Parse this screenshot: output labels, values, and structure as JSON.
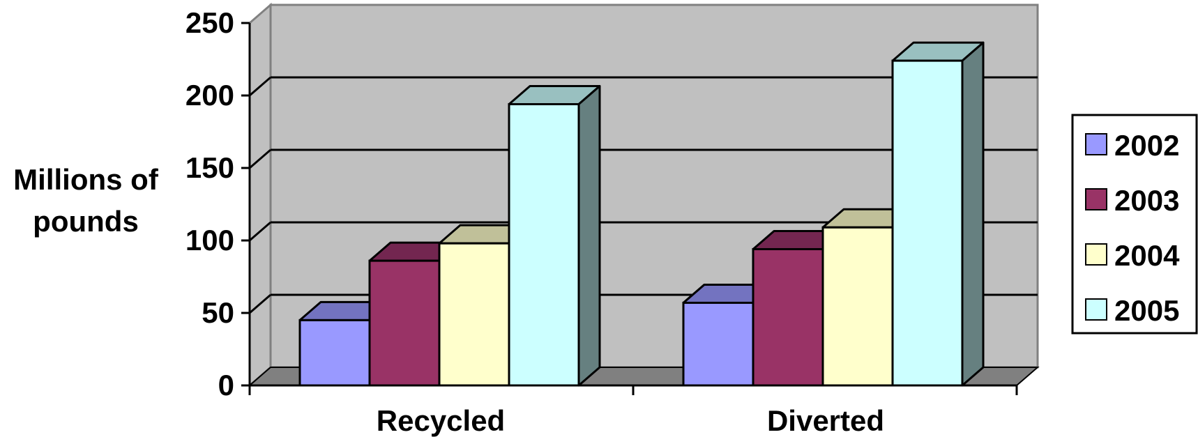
{
  "chart_data": {
    "type": "bar",
    "title": "",
    "ylabel_lines": [
      "Millions of",
      "pounds"
    ],
    "xlabel": "",
    "categories": [
      "Recycled",
      "Diverted"
    ],
    "series": [
      {
        "name": "2002",
        "values": [
          45,
          57
        ]
      },
      {
        "name": "2003",
        "values": [
          86,
          94
        ]
      },
      {
        "name": "2004",
        "values": [
          98,
          109
        ]
      },
      {
        "name": "2005",
        "values": [
          194,
          224
        ]
      }
    ],
    "ylim": [
      0,
      250
    ],
    "yticks": [
      "0",
      "50",
      "100",
      "150",
      "200",
      "250"
    ],
    "grid": true,
    "three_d": true,
    "legend_position": "right",
    "colors": {
      "series_front": [
        "#9999ff",
        "#993366",
        "#ffffcc",
        "#ccffff"
      ],
      "series_top": [
        "#7373c0",
        "#732650",
        "#c0c099",
        "#99c0c0"
      ],
      "series_side": [
        "#5c5c99",
        "#5c1f3d",
        "#99997a",
        "#668080"
      ],
      "back_wall": "#c0c0c0",
      "side_wall": "#c0c0c0",
      "floor": "#808080",
      "gridline": "#000000"
    }
  }
}
